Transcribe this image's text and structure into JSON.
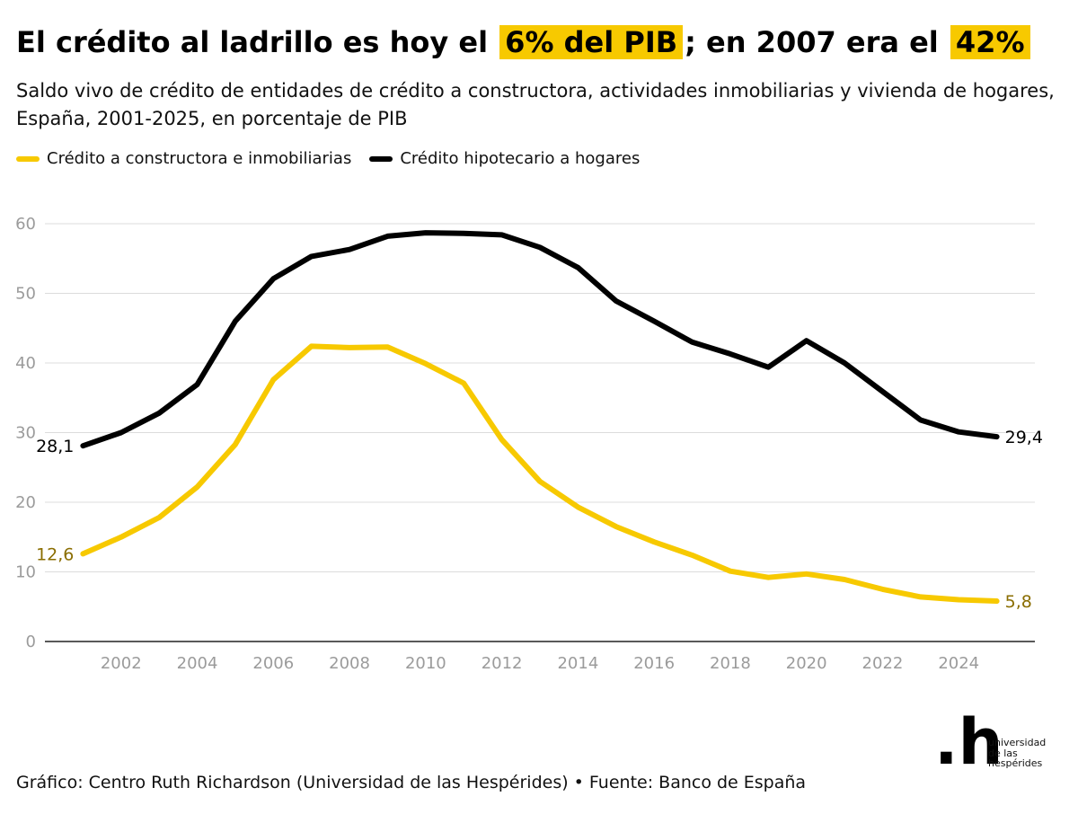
{
  "header": {
    "title_part1": "El crédito al ladrillo es hoy el",
    "title_highlight1": "6% del PIB",
    "title_part2": "; en 2007 era el",
    "title_highlight2": "42%",
    "subtitle": "Saldo vivo de crédito de entidades de crédito a constructora, actividades inmobiliarias y vivienda de hogares, España, 2001-2025, en porcentaje de PIB"
  },
  "colors": {
    "highlight": "#f7c900",
    "series_yellow": "#f7c900",
    "series_black": "#000000",
    "label_yellow": "#8a6d00"
  },
  "chart_data": {
    "type": "line",
    "x": [
      2001,
      2002,
      2003,
      2004,
      2005,
      2006,
      2007,
      2008,
      2009,
      2010,
      2011,
      2012,
      2013,
      2014,
      2015,
      2016,
      2017,
      2018,
      2019,
      2020,
      2021,
      2022,
      2023,
      2024,
      2025
    ],
    "series": [
      {
        "name": "Crédito a constructora e inmobiliarias",
        "color": "#f7c900",
        "values": [
          12.6,
          15.0,
          17.8,
          22.2,
          28.3,
          37.6,
          42.4,
          42.2,
          42.3,
          39.9,
          37.1,
          29.0,
          23.0,
          19.3,
          16.5,
          14.3,
          12.4,
          10.1,
          9.2,
          9.7,
          8.9,
          7.5,
          6.4,
          6.0,
          5.8
        ],
        "start_label": "12,6",
        "end_label": "5,8"
      },
      {
        "name": "Crédito hipotecario a hogares",
        "color": "#000000",
        "values": [
          28.1,
          30.0,
          32.8,
          36.9,
          46.0,
          52.1,
          55.3,
          56.3,
          58.2,
          58.7,
          58.6,
          58.4,
          56.6,
          53.7,
          48.9,
          46.0,
          43.0,
          41.3,
          39.4,
          43.2,
          40.0,
          35.9,
          31.8,
          30.1,
          29.4
        ],
        "start_label": "28,1",
        "end_label": "29,4"
      }
    ],
    "ylim": [
      0,
      60
    ],
    "yticks": [
      0,
      10,
      20,
      30,
      40,
      50,
      60
    ],
    "xlim": [
      2000,
      2026
    ],
    "xticks": [
      2002,
      2004,
      2006,
      2008,
      2010,
      2012,
      2014,
      2016,
      2018,
      2020,
      2022,
      2024
    ],
    "grid": true,
    "legend": "top-left"
  },
  "footer": {
    "credit": "Gráfico: Centro Ruth Richardson (Universidad de las Hespérides) • Fuente: Banco de España"
  },
  "logo": {
    "mark": ".h",
    "line1": "universidad",
    "line2": "de las",
    "line3": "hespérides"
  }
}
